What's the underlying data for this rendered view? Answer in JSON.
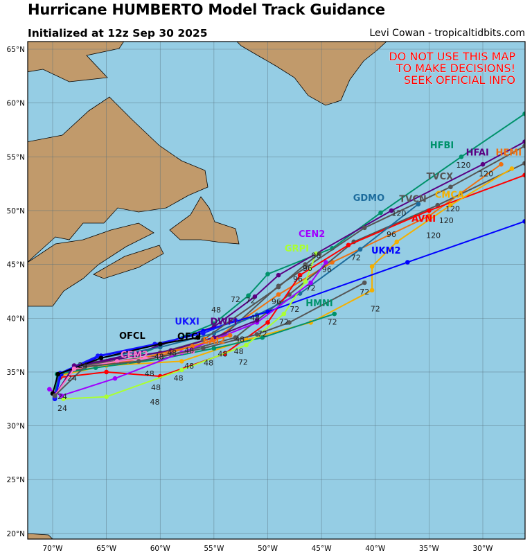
{
  "header": {
    "title": "Hurricane HUMBERTO Model Track Guidance",
    "subtitle": "Initialized at 12z Sep 30 2025",
    "credit": "Levi Cowan - tropicaltidbits.com"
  },
  "warning": [
    "DO NOT USE THIS MAP",
    "TO MAKE DECISIONS!",
    "SEEK OFFICIAL INFO"
  ],
  "colors": {
    "ocean": "#95cde4",
    "land": "#c19a6b",
    "warning": "#ff0000"
  },
  "chart_data": {
    "type": "line",
    "xaxis": {
      "range": [
        -72.3,
        -26.1
      ],
      "ticks": [
        -70,
        -65,
        -60,
        -55,
        -50,
        -45,
        -40,
        -35,
        -30
      ],
      "tick_labels": [
        "70°W",
        "65°W",
        "60°W",
        "55°W",
        "50°W",
        "45°W",
        "40°W",
        "35°W",
        "30°W"
      ]
    },
    "yaxis": {
      "range": [
        19.5,
        65.7
      ],
      "ticks": [
        20,
        25,
        30,
        35,
        40,
        45,
        50,
        55,
        60,
        65
      ],
      "tick_labels": [
        "20°N",
        "25°N",
        "30°N",
        "35°N",
        "40°N",
        "45°N",
        "50°N",
        "55°N",
        "60°N",
        "65°N"
      ]
    },
    "grid": true,
    "series": [
      {
        "name": "HFBI",
        "color": "#00926b",
        "label_at": [
          -33.8,
          55.8
        ],
        "points": [
          [
            -69.8,
            32.8
          ],
          [
            -69.5,
            34.7
          ],
          [
            -67.5,
            35.6
          ],
          [
            -62,
            36.6
          ],
          [
            -55,
            39.5
          ],
          [
            -51.8,
            42.1
          ],
          [
            -50,
            44.1
          ],
          [
            -44,
            46.5
          ],
          [
            -39.5,
            49.8
          ],
          [
            -32,
            55
          ],
          [
            -26.1,
            59
          ]
        ]
      },
      {
        "name": "HFAI",
        "color": "#5a0082",
        "label_at": [
          -30.5,
          55.1
        ],
        "points": [
          [
            -69.8,
            32.8
          ],
          [
            -69.4,
            34.8
          ],
          [
            -67,
            35.7
          ],
          [
            -62,
            36.8
          ],
          [
            -55,
            39.2
          ],
          [
            -51.2,
            42
          ],
          [
            -49,
            44
          ],
          [
            -38.5,
            50
          ],
          [
            -30,
            54.3
          ],
          [
            -26.1,
            56.4
          ]
        ]
      },
      {
        "name": "HEMI",
        "color": "#f07010",
        "label_at": [
          -28.5,
          55.1
        ],
        "points": [
          [
            -69.8,
            32.8
          ],
          [
            -69.3,
            34.6
          ],
          [
            -66,
            35.8
          ],
          [
            -60,
            36.5
          ],
          [
            -55,
            38
          ],
          [
            -49,
            42.2
          ],
          [
            -44,
            45.2
          ],
          [
            -35,
            49.5
          ],
          [
            -28.3,
            54.3
          ]
        ]
      },
      {
        "name": "TVCX",
        "color": "#555555",
        "label_at": [
          -34,
          52.9
        ],
        "points": [
          [
            -69.8,
            32.8
          ],
          [
            -69.4,
            34.6
          ],
          [
            -66,
            35.9
          ],
          [
            -60,
            36.8
          ],
          [
            -54,
            38.5
          ],
          [
            -49,
            43
          ],
          [
            -41,
            48.4
          ],
          [
            -33,
            52.2
          ],
          [
            -26.1,
            56
          ]
        ]
      },
      {
        "name": "TVCN",
        "color": "#555555",
        "label_at": [
          -36.5,
          50.8
        ],
        "points": [
          [
            -69.8,
            32.8
          ],
          [
            -69.4,
            34.6
          ],
          [
            -66,
            35.8
          ],
          [
            -59,
            36.6
          ],
          [
            -53,
            38.2
          ],
          [
            -48,
            42.2
          ],
          [
            -42,
            47.1
          ],
          [
            -34.2,
            50.5
          ],
          [
            -26.1,
            54.4
          ]
        ]
      },
      {
        "name": "AVNI",
        "color": "#ff0000",
        "label_at": [
          -35.5,
          50.5
        ],
        "points": [
          [
            -69.8,
            32.8
          ],
          [
            -69.3,
            34.5
          ],
          [
            -65,
            35
          ],
          [
            -60,
            34.6
          ],
          [
            -54,
            36.7
          ],
          [
            -50,
            39.6
          ],
          [
            -47,
            44
          ],
          [
            -42.5,
            46.8
          ],
          [
            -35,
            50
          ],
          [
            -26.1,
            53.3
          ]
        ]
      },
      {
        "name": "CMCA",
        "color": "#f5b000",
        "label_at": [
          -34,
          51.2
        ],
        "points": [
          [
            -69.8,
            32.8
          ],
          [
            -69.3,
            34.7
          ],
          [
            -65,
            35.6
          ],
          [
            -58,
            36
          ],
          [
            -52,
            38
          ],
          [
            -46,
            39.6
          ],
          [
            -40.3,
            42.6
          ],
          [
            -40.3,
            44.8
          ],
          [
            -38,
            47.1
          ],
          [
            -33,
            50.5
          ],
          [
            -27.3,
            53.9
          ]
        ]
      },
      {
        "name": "GDMO",
        "color": "#1c6b9c",
        "label_at": [
          -40.6,
          50.9
        ],
        "points": [
          [
            -69.8,
            32.8
          ],
          [
            -69.4,
            34.7
          ],
          [
            -65.5,
            36.3
          ],
          [
            -60,
            37.3
          ],
          [
            -55,
            38.6
          ],
          [
            -51,
            40.3
          ],
          [
            -47,
            42.3
          ],
          [
            -41.4,
            46.4
          ],
          [
            -36,
            50.6
          ]
        ]
      },
      {
        "name": "UKM2",
        "color": "#0000ff",
        "label_at": [
          -39,
          46
        ],
        "points": [
          [
            -69.8,
            32.5
          ],
          [
            -69.2,
            34.8
          ],
          [
            -65.5,
            36.5
          ],
          [
            -60,
            37.6
          ],
          [
            -56,
            38.8
          ],
          [
            -50,
            40.6
          ],
          [
            -37,
            45.2
          ],
          [
            -26.1,
            49
          ]
        ]
      },
      {
        "name": "HMNI",
        "color": "#00926b",
        "label_at": [
          -45.2,
          41.1
        ],
        "points": [
          [
            -69.8,
            32.8
          ],
          [
            -69.6,
            34.8
          ],
          [
            -66,
            35.4
          ],
          [
            -60,
            36.2
          ],
          [
            -55,
            37.2
          ],
          [
            -50.5,
            38.2
          ],
          [
            -43.8,
            40.4
          ]
        ]
      },
      {
        "name": "GRPI",
        "color": "#aaff33",
        "label_at": [
          -47.3,
          46.2
        ],
        "points": [
          [
            -69,
            32.5
          ],
          [
            -65,
            32.7
          ],
          [
            -58,
            35.2
          ],
          [
            -52,
            37.5
          ],
          [
            -48.5,
            40.4
          ],
          [
            -46.5,
            43.4
          ],
          [
            -45.5,
            46
          ]
        ]
      },
      {
        "name": "CEN2",
        "color": "#a000ff",
        "label_at": [
          -45.9,
          46.0
        ],
        "points": [
          [
            -70.3,
            33.4
          ],
          [
            -69.2,
            32.8
          ],
          [
            -64.2,
            34.4
          ],
          [
            -58,
            36.8
          ],
          [
            -51,
            39.6
          ],
          [
            -46,
            43.3
          ],
          [
            -44.6,
            45.2
          ]
        ]
      },
      {
        "name": "UKXI",
        "color": "#1414ff",
        "label_at": [
          -57.5,
          39.4
        ],
        "points": [
          [
            -69.8,
            32.6
          ],
          [
            -69.3,
            34.9
          ],
          [
            -65.8,
            36.5
          ],
          [
            -60.5,
            37.6
          ],
          [
            -56,
            38.6
          ],
          [
            -53,
            39.8
          ]
        ]
      },
      {
        "name": "DWFI",
        "color": "#5a0082",
        "label_at": [
          -55,
          39.4
        ],
        "points": [
          [
            -69.8,
            32.8
          ],
          [
            -68,
            35.6
          ],
          [
            -64,
            36.2
          ],
          [
            -59,
            37
          ],
          [
            -55,
            38.2
          ],
          [
            -51,
            39.8
          ]
        ]
      },
      {
        "name": "EAI2",
        "color": "#f07010",
        "label_at": [
          -55,
          38.4
        ],
        "points": [
          [
            -69.8,
            32.8
          ],
          [
            -68,
            35.3
          ],
          [
            -63,
            36
          ],
          [
            -57,
            37.4
          ],
          [
            -53.5,
            38.4
          ]
        ]
      },
      {
        "name": "OFCL",
        "color": "#000000",
        "label_at": [
          -62.6,
          38.1
        ],
        "points": [
          [
            -70,
            33
          ],
          [
            -69.5,
            34.8
          ],
          [
            -65.5,
            36.3
          ],
          [
            -60,
            37.6
          ],
          [
            -56.5,
            38.2
          ]
        ]
      },
      {
        "name": "OFCI",
        "color": "#000000",
        "label_at": [
          -57.3,
          38.8
        ],
        "points": [
          [
            -56.5,
            38.2
          ]
        ]
      },
      {
        "name": "CEM2",
        "color": "#ff77cc",
        "label_at": [
          -62.4,
          36.3
        ],
        "points": [
          [
            -69.8,
            32.8
          ],
          [
            -68,
            35.3
          ],
          [
            -64,
            36
          ],
          [
            -60,
            36.4
          ],
          [
            -57,
            36.9
          ]
        ]
      },
      {
        "name": "",
        "color": "#555555",
        "points": [
          [
            -69.8,
            32.8
          ],
          [
            -67,
            35.5
          ],
          [
            -62,
            36
          ],
          [
            -56,
            37.2
          ],
          [
            -51,
            38.5
          ],
          [
            -48,
            39.6
          ],
          [
            -41,
            43.3
          ]
        ]
      },
      {
        "name": "",
        "color": "#555555",
        "points": [
          [
            -56,
            38
          ],
          [
            -49,
            42.9
          ],
          [
            -46.5,
            45
          ],
          [
            -45.2,
            46
          ]
        ]
      }
    ],
    "tau_labels": [
      {
        "t": "24",
        "at": [
          -69.1,
          31.4
        ]
      },
      {
        "t": "24",
        "at": [
          -69.1,
          31.7
        ]
      },
      {
        "t": "24",
        "at": [
          -68.2,
          34.2
        ]
      },
      {
        "t": "24",
        "at": [
          -67.2,
          34.6
        ]
      },
      {
        "t": "48",
        "at": [
          -61,
          34.6
        ]
      },
      {
        "t": "48",
        "at": [
          -60.4,
          34.1
        ]
      },
      {
        "t": "48",
        "at": [
          -60.5,
          33.5
        ]
      },
      {
        "t": "48",
        "at": [
          -58.3,
          34.2
        ]
      },
      {
        "t": "48",
        "at": [
          -57.3,
          35.3
        ]
      },
      {
        "t": "48",
        "at": [
          -57.3,
          36
        ]
      },
      {
        "t": "48",
        "at": [
          -55.5,
          35.6
        ]
      },
      {
        "t": "48",
        "at": [
          -56,
          37.2
        ]
      },
      {
        "t": "48",
        "at": [
          -54.4,
          37.8
        ]
      },
      {
        "t": "48",
        "at": [
          -54.8,
          38.2
        ]
      },
      {
        "t": "48",
        "at": [
          -53.6,
          38.2
        ]
      },
      {
        "t": "48",
        "at": [
          -60.1,
          36.2
        ]
      },
      {
        "t": "48",
        "at": [
          -58,
          38.1
        ]
      },
      {
        "t": "48",
        "at": [
          -51.2,
          39.8
        ]
      },
      {
        "t": "72",
        "at": [
          -53.2,
          37.2
        ]
      },
      {
        "t": "72",
        "at": [
          -50.5,
          38.3
        ]
      },
      {
        "t": "72",
        "at": [
          -48.5,
          39.4
        ]
      },
      {
        "t": "72",
        "at": [
          -47.5,
          40.6
        ]
      },
      {
        "t": "72",
        "at": [
          -46,
          41
        ]
      },
      {
        "t": "72",
        "at": [
          -44,
          39.4
        ]
      },
      {
        "t": "72",
        "at": [
          -41,
          42.2
        ]
      },
      {
        "t": "72",
        "at": [
          -40,
          41.4
        ]
      },
      {
        "t": "72",
        "at": [
          -51.6,
          41.4
        ]
      },
      {
        "t": "72",
        "at": [
          -52.1,
          41.5
        ]
      },
      {
        "t": "72",
        "at": [
          -41.8,
          45.4
        ]
      },
      {
        "t": "96",
        "at": [
          -49.2,
          41.3
        ]
      },
      {
        "t": "96",
        "at": [
          -47.2,
          43.4
        ]
      },
      {
        "t": "96",
        "at": [
          -46.3,
          44.4
        ]
      },
      {
        "t": "96",
        "at": [
          -44.5,
          44.3
        ]
      },
      {
        "t": "96",
        "at": [
          -46.4,
          45.6
        ]
      },
      {
        "t": "96",
        "at": [
          -38.5,
          46
        ]
      },
      {
        "t": "120",
        "at": [
          -31.8,
          54
        ]
      },
      {
        "t": "120",
        "at": [
          -29.7,
          53.2
        ]
      },
      {
        "t": "120",
        "at": [
          -33.7,
          50.7
        ]
      },
      {
        "t": "120",
        "at": [
          -34.3,
          49.6
        ]
      },
      {
        "t": "120",
        "at": [
          -36,
          49.5
        ]
      },
      {
        "t": "120",
        "at": [
          -34.6,
          49.0
        ]
      }
    ]
  }
}
